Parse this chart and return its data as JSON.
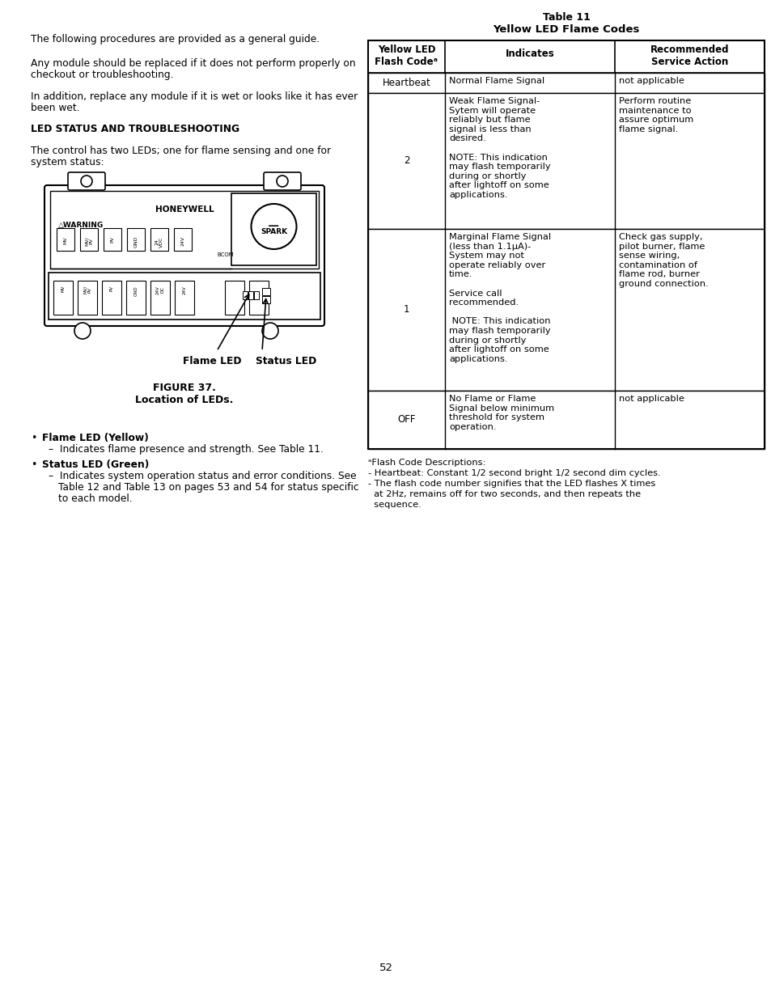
{
  "page_number": "52",
  "background_color": "#ffffff",
  "para1": "The following procedures are provided as a general guide.",
  "para2a": "Any module should be replaced if it does not perform properly on",
  "para2b": "checkout or troubleshooting.",
  "para3a": "In addition, replace any module if it is wet or looks like it has ever",
  "para3b": "been wet.",
  "section_heading": "LED STATUS AND TROUBLESHOOTING",
  "section_body1": "The control has two LEDs; one for flame sensing and one for",
  "section_body2": "system status:",
  "fig_caption1": "FIGURE 37.",
  "fig_caption2": "Location of LEDs.",
  "bullet1_head": "Flame LED (Yellow)",
  "bullet1_body": "Indicates flame presence and strength. See Table 11.",
  "bullet2_head": "Status LED (Green)",
  "bullet2_body1": "Indicates system operation status and error conditions. See",
  "bullet2_body2": "Table 12 and Table 13 on pages 53 and 54 for status specific",
  "bullet2_body3": "to each model.",
  "table_title1": "Table 11",
  "table_title2": "Yellow LED Flame Codes",
  "col1_header": "Yellow LED\nFlash Codeᵃ",
  "col2_header": "Indicates",
  "col3_header": "Recommended\nService Action",
  "row1_col1": "Heartbeat",
  "row1_col2": "Normal Flame Signal",
  "row1_col3": "not applicable",
  "row2_col1": "2",
  "row2_col2": "Weak Flame Signal-\nSytem will operate\nreliably but flame\nsignal is less than\ndesired.\n\nNOTE: This indication\nmay flash temporarily\nduring or shortly\nafter lightoff on some\napplications.",
  "row2_col3": "Perform routine\nmaintenance to\nassure optimum\nflame signal.",
  "row3_col1": "1",
  "row3_col2": "Marginal Flame Signal\n(less than 1.1μA)-\nSystem may not\noperate reliably over\ntime.\n\nService call\nrecommended.\n\n NOTE: This indication\nmay flash temporarily\nduring or shortly\nafter lightoff on some\napplications.",
  "row3_col3": "Check gas supply,\npilot burner, flame\nsense wiring,\ncontamination of\nflame rod, burner\nground connection.",
  "row4_col1": "OFF",
  "row4_col2": "No Flame or Flame\nSignal below minimum\nthreshold for system\noperation.",
  "row4_col3": "not applicable",
  "footnote1": "ᵃFlash Code Descriptions:",
  "footnote2": "- Heartbeat: Constant 1/2 second bright 1/2 second dim cycles.",
  "footnote3": "- The flash code number signifies that the LED flashes X times",
  "footnote4": "  at 2Hz, remains off for two seconds, and then repeats the",
  "footnote5": "  sequence."
}
